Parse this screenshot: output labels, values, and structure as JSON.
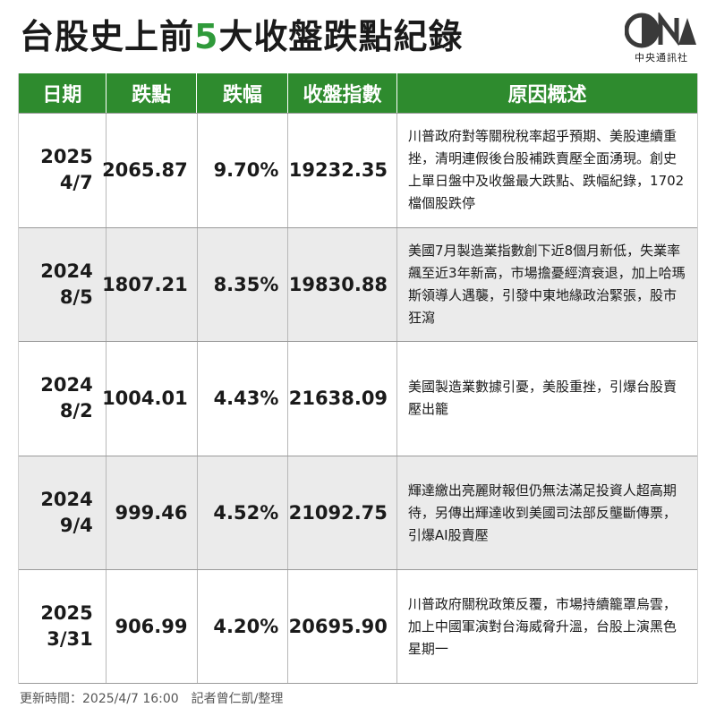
{
  "title": {
    "before": "台股史上前",
    "number": "5",
    "after": "大收盤跌點紀錄"
  },
  "logo": {
    "text": "中央通訊社",
    "icon": "cna-logo-icon",
    "color": "#3a3a3a"
  },
  "table": {
    "headers": [
      "日期",
      "跌點",
      "跌幅",
      "收盤指數",
      "原因概述"
    ],
    "header_color": "#2e8b2e",
    "rows": [
      {
        "year": "2025",
        "md": "4/7",
        "points": "2065.87",
        "pct": "9.70%",
        "close": "19232.35",
        "reason": "川普政府對等關稅稅率超乎預期、美股連續重挫，清明連假後台股補跌賣壓全面湧現。創史上單日盤中及收盤最大跌點、跌幅紀錄，1702檔個股跌停"
      },
      {
        "year": "2024",
        "md": "8/5",
        "points": "1807.21",
        "pct": "8.35%",
        "close": "19830.88",
        "reason": "美國7月製造業指數創下近8個月新低，失業率飆至近3年新高，市場擔憂經濟衰退，加上哈瑪斯領導人遇襲，引發中東地緣政治緊張，股市狂瀉"
      },
      {
        "year": "2024",
        "md": "8/2",
        "points": "1004.01",
        "pct": "4.43%",
        "close": "21638.09",
        "reason": "美國製造業數據引憂，美股重挫，引爆台股賣壓出籠"
      },
      {
        "year": "2024",
        "md": "9/4",
        "points": "999.46",
        "pct": "4.52%",
        "close": "21092.75",
        "reason": "輝達繳出亮麗財報但仍無法滿足投資人超高期待，另傳出輝達收到美國司法部反壟斷傳票，引爆AI股賣壓"
      },
      {
        "year": "2025",
        "md": "3/31",
        "points": "906.99",
        "pct": "4.20%",
        "close": "20695.90",
        "reason": "川普政府關稅政策反覆，市場持續籠罩烏雲，加上中國軍演對台海威脅升溫，台股上演黑色星期一"
      }
    ]
  },
  "footer": "更新時間：2025/4/7 16:00　記者曾仁凱/整理"
}
